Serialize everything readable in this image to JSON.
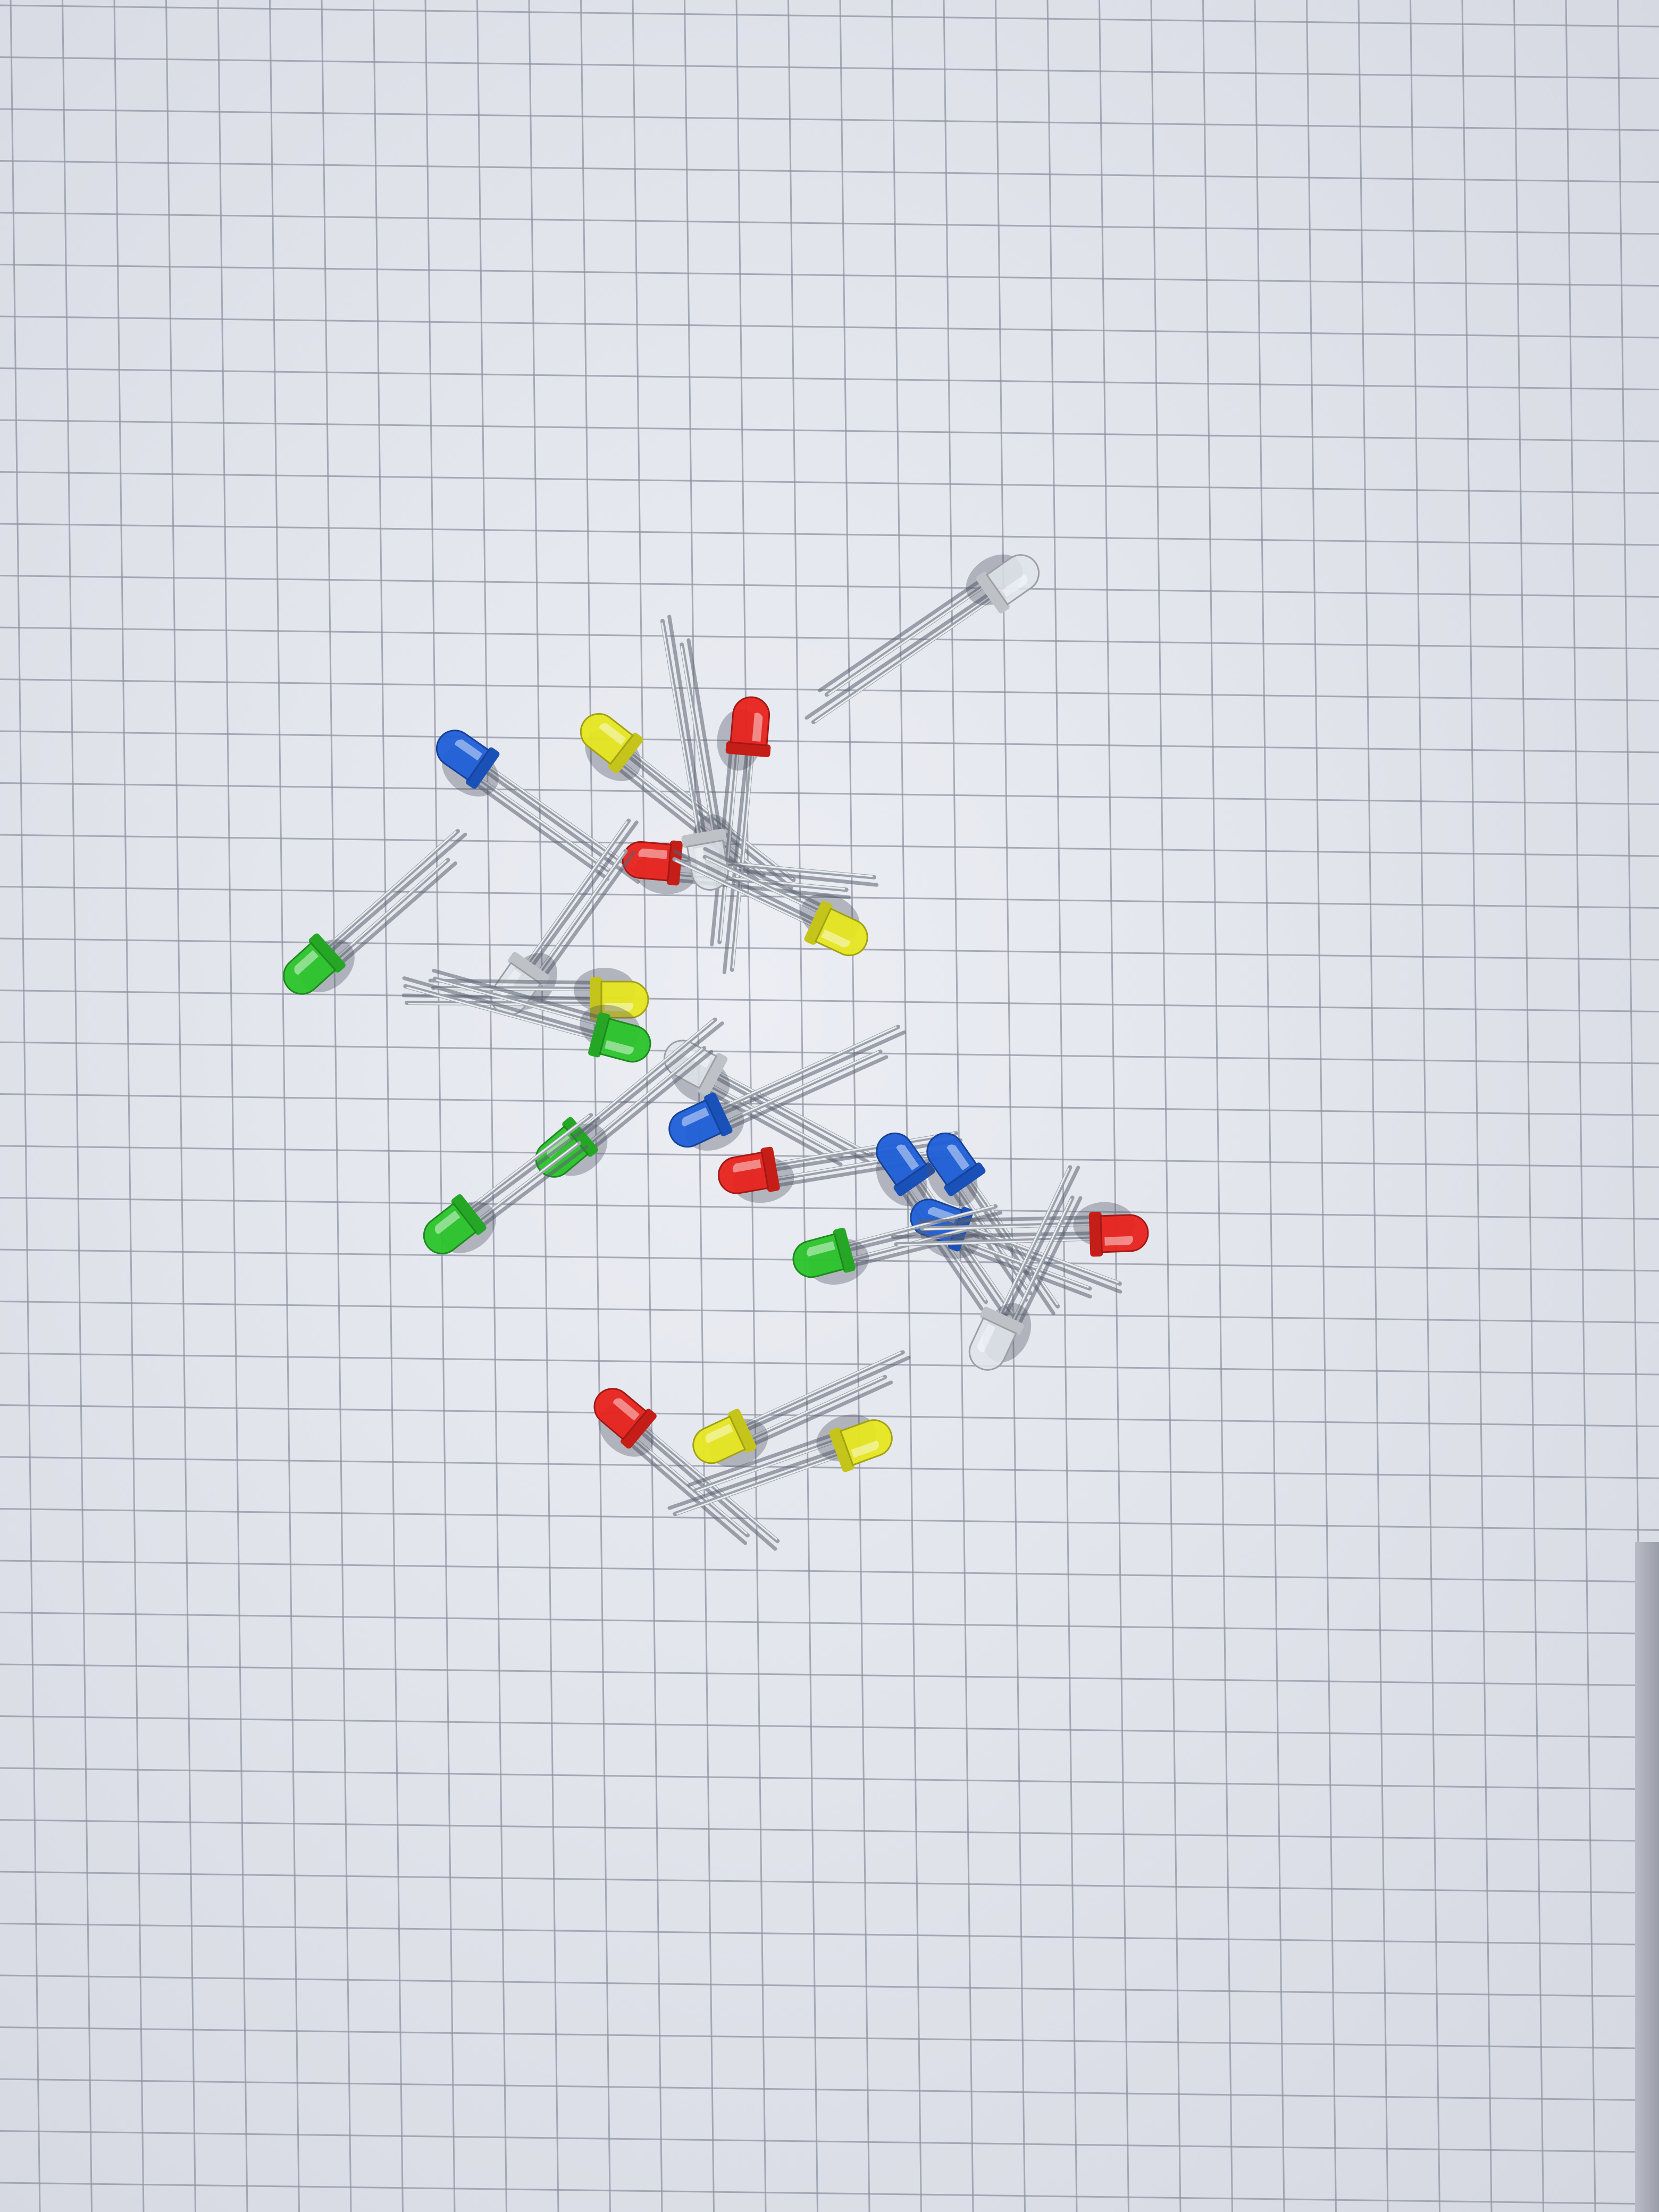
{
  "photo": {
    "subject": "",
    "colors": {
      "paper": "#e6e8ef",
      "grid_line": "#8f94a3",
      "lead": "#9aa0a8",
      "lead_highlight": "#e8ecf0",
      "red": "#e8231c",
      "yellow": "#e6e620",
      "green": "#2bc42b",
      "blue": "#1f5fd8",
      "clear": "#dfe4ea"
    },
    "leds": [
      {
        "id": "led-clear-top",
        "color": "clear"
      },
      {
        "id": "led-blue-upper-left",
        "color": "blue"
      },
      {
        "id": "led-yellow-upper",
        "color": "yellow"
      },
      {
        "id": "led-red-upper",
        "color": "red"
      },
      {
        "id": "led-red-center",
        "color": "red"
      },
      {
        "id": "led-clear-center",
        "color": "clear"
      },
      {
        "id": "led-yellow-right",
        "color": "yellow"
      },
      {
        "id": "led-green-left",
        "color": "green"
      },
      {
        "id": "led-clear-left",
        "color": "clear"
      },
      {
        "id": "led-yellow-mid",
        "color": "yellow"
      },
      {
        "id": "led-green-mid",
        "color": "green"
      },
      {
        "id": "led-clear-mid",
        "color": "clear"
      },
      {
        "id": "led-blue-mid",
        "color": "blue"
      },
      {
        "id": "led-green-lower-1",
        "color": "green"
      },
      {
        "id": "led-green-lower-2",
        "color": "green"
      },
      {
        "id": "led-red-lower",
        "color": "red"
      },
      {
        "id": "led-blue-cluster-1",
        "color": "blue"
      },
      {
        "id": "led-blue-cluster-2",
        "color": "blue"
      },
      {
        "id": "led-blue-cluster-3",
        "color": "blue"
      },
      {
        "id": "led-green-cluster",
        "color": "green"
      },
      {
        "id": "led-red-cluster",
        "color": "red"
      },
      {
        "id": "led-clear-cluster",
        "color": "clear"
      },
      {
        "id": "led-red-bottom",
        "color": "red"
      },
      {
        "id": "led-yellow-bottom-1",
        "color": "yellow"
      },
      {
        "id": "led-yellow-bottom-2",
        "color": "yellow"
      }
    ]
  }
}
